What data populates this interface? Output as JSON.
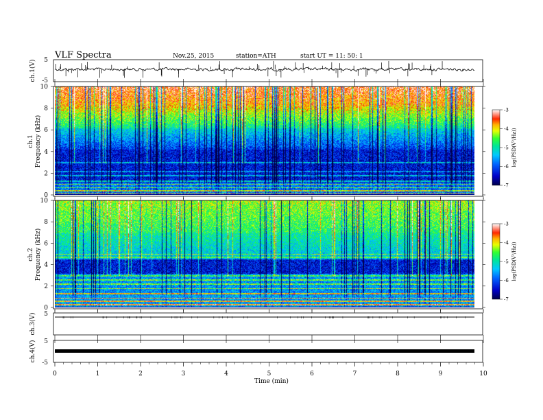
{
  "header": {
    "title": "VLF  Spectra",
    "date": "Nov.25, 2015",
    "station": "station=ATH",
    "start": "start  UT  =    11: 50: 1"
  },
  "chart_data": [
    {
      "type": "line",
      "id": "ch1-waveform",
      "ylabel": "ch.1(V)",
      "ylim": [
        -5,
        5
      ],
      "yticks": [
        "5",
        "-5"
      ],
      "xlim": [
        0,
        10
      ],
      "series": [
        {
          "x_range": [
            0,
            9.8
          ],
          "baseline": 0,
          "noise_amplitude": 1.0
        }
      ]
    },
    {
      "type": "heatmap",
      "id": "ch1-spectrogram",
      "ylabel": "ch.1\nFrequency (kHz)",
      "ylim": [
        0,
        10
      ],
      "yticks": [
        "0",
        "2",
        "4",
        "6",
        "8",
        "10"
      ],
      "xlim": [
        0,
        10
      ],
      "x_extent": [
        0,
        9.8
      ],
      "colorbar": {
        "label": "log(PSD(V²/Hz))",
        "range": [
          -7,
          -3
        ],
        "ticks": [
          "-3",
          "-4",
          "-5",
          "-6",
          "-7"
        ]
      }
    },
    {
      "type": "heatmap",
      "id": "ch2-spectrogram",
      "ylabel": "ch.2\nFrequency (kHz)",
      "ylim": [
        0,
        10
      ],
      "yticks": [
        "0",
        "2",
        "4",
        "6",
        "8",
        "10"
      ],
      "xlim": [
        0,
        10
      ],
      "x_extent": [
        0,
        9.8
      ],
      "colorbar": {
        "label": "log(PSD(V²/Hz))",
        "range": [
          -7,
          -3
        ],
        "ticks": [
          "-3",
          "-4",
          "-5",
          "-6",
          "-7"
        ]
      }
    },
    {
      "type": "line",
      "id": "ch3-waveform",
      "ylabel": "ch.3(V)",
      "ylim": [
        -5,
        5
      ],
      "yticks": [
        "5"
      ],
      "xlim": [
        0,
        10
      ],
      "series": [
        {
          "x_range": [
            0,
            9.8
          ],
          "baseline": 0
        }
      ]
    },
    {
      "type": "line",
      "id": "ch4-waveform",
      "ylabel": "ch.4(V)",
      "ylim": [
        -5,
        5
      ],
      "yticks": [
        "5",
        "-5"
      ],
      "xlim": [
        0,
        10
      ],
      "series": [
        {
          "x_range": [
            0,
            9.8
          ],
          "baseline": -0.2
        }
      ]
    }
  ],
  "x_axis": {
    "label": "Time  (min)",
    "ticks": [
      "0",
      "1",
      "2",
      "3",
      "4",
      "5",
      "6",
      "7",
      "8",
      "9",
      "10"
    ]
  }
}
